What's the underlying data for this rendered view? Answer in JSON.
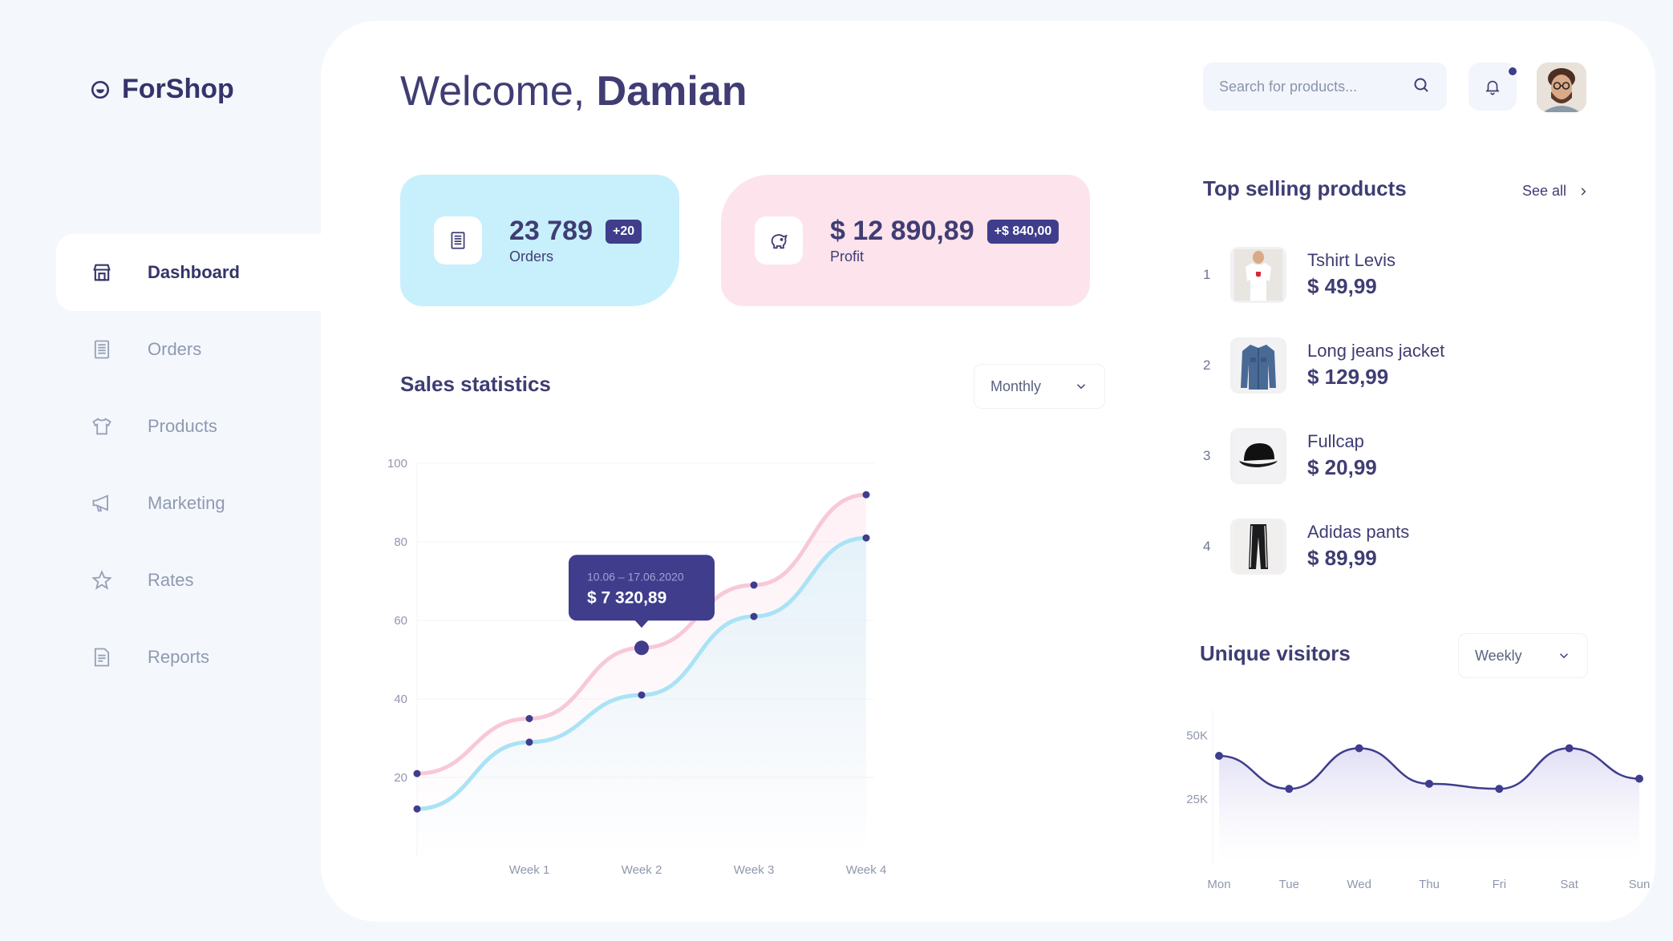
{
  "app": {
    "name": "ForShop"
  },
  "sidebar": {
    "items": [
      {
        "label": "Dashboard",
        "icon": "store-icon",
        "active": true
      },
      {
        "label": "Orders",
        "icon": "receipt-icon",
        "active": false
      },
      {
        "label": "Products",
        "icon": "tshirt-icon",
        "active": false
      },
      {
        "label": "Marketing",
        "icon": "megaphone-icon",
        "active": false
      },
      {
        "label": "Rates",
        "icon": "star-icon",
        "active": false
      },
      {
        "label": "Reports",
        "icon": "report-icon",
        "active": false
      }
    ]
  },
  "header": {
    "welcome_prefix": "Welcome,",
    "user_name": "Damian",
    "search_placeholder": "Search for products...",
    "search_value": ""
  },
  "stats": {
    "orders": {
      "value": "23 789",
      "badge": "+20",
      "label": "Orders"
    },
    "profit": {
      "value": "$ 12 890,89",
      "badge": "+$ 840,00",
      "label": "Profit"
    }
  },
  "sales": {
    "title": "Sales statistics",
    "period": "Monthly",
    "tooltip": {
      "date": "10.06 – 17.06.2020",
      "value": "$ 7 320,89"
    }
  },
  "top_selling": {
    "title": "Top selling products",
    "see_all": "See all",
    "products": [
      {
        "rank": "1",
        "name": "Tshirt Levis",
        "price": "$ 49,99"
      },
      {
        "rank": "2",
        "name": "Long jeans jacket",
        "price": "$ 129,99"
      },
      {
        "rank": "3",
        "name": "Fullcap",
        "price": "$ 20,99"
      },
      {
        "rank": "4",
        "name": "Adidas pants",
        "price": "$ 89,99"
      }
    ]
  },
  "visitors": {
    "title": "Unique visitors",
    "period": "Weekly"
  },
  "colors": {
    "accent": "#3f3d8c",
    "pink": "#fde3ec",
    "blue": "#c8effc",
    "pink_line": "#f7c9d8",
    "blue_line": "#a9e3f5"
  },
  "chart_data": [
    {
      "type": "line",
      "title": "Sales statistics",
      "categories": [
        "Week 1",
        "Week 2",
        "Week 3",
        "Week 4"
      ],
      "x": [
        0,
        1,
        2,
        3,
        4
      ],
      "ylim": [
        0,
        100
      ],
      "yticks": [
        20,
        40,
        60,
        80,
        100
      ],
      "grid": true,
      "series": [
        {
          "values": [
            21,
            35,
            53,
            69,
            92
          ]
        },
        {
          "values": [
            12,
            29,
            41,
            61,
            81
          ]
        }
      ]
    },
    {
      "type": "line",
      "title": "Unique visitors",
      "categories": [
        "Mon",
        "Tue",
        "Wed",
        "Thu",
        "Fri",
        "Sat",
        "Sun"
      ],
      "ytick_labels": [
        "25K",
        "50K"
      ],
      "ytick_values": [
        25000,
        50000
      ],
      "ylim": [
        0,
        60000
      ],
      "series": [
        {
          "values": [
            42000,
            29000,
            45000,
            31000,
            29000,
            45000,
            33000
          ]
        }
      ]
    }
  ]
}
